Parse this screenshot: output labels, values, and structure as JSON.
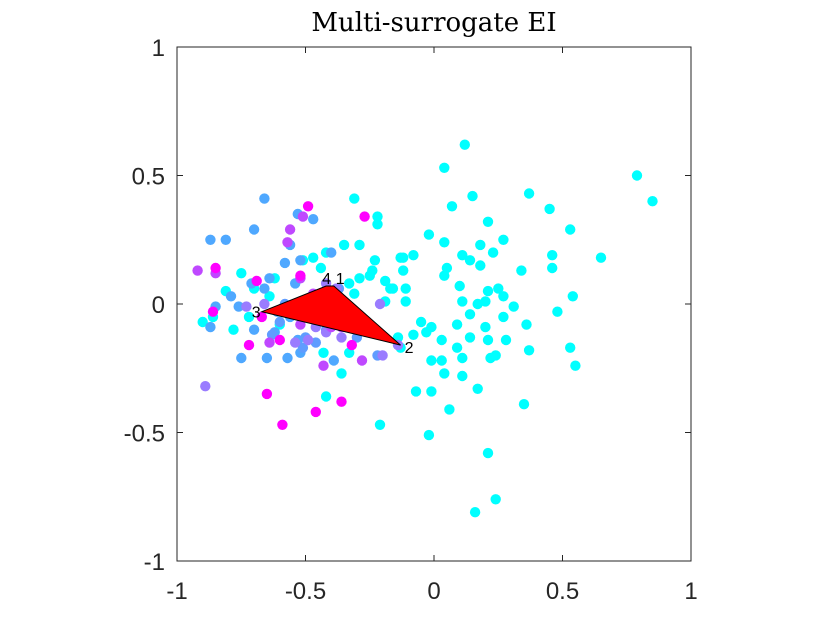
{
  "chart_data": {
    "type": "scatter",
    "title": "Multi-surrogate EI",
    "xlabel": "",
    "ylabel": "",
    "xlim": [
      -1,
      1
    ],
    "ylim": [
      -1,
      1
    ],
    "x_ticks": [
      -1,
      -0.5,
      0,
      0.5,
      1
    ],
    "y_ticks": [
      -1,
      -0.5,
      0,
      0.5,
      1
    ],
    "x_tick_labels": [
      "-1",
      "-0.5",
      "0",
      "0.5",
      "1"
    ],
    "y_tick_labels": [
      "-1",
      "-0.5",
      "0",
      "0.5",
      "1"
    ],
    "grid": false,
    "legend": "none",
    "box": true,
    "colors": {
      "cyan": "#00ffff",
      "sky": "#4fa8ff",
      "blue": "#5f9cff",
      "lavender": "#9a7cff",
      "violet": "#bf48ff",
      "magenta": "#ff00ff",
      "polygon_fill": "#ff0000",
      "polygon_edge": "#000000"
    },
    "points": [
      {
        "x": 0.12,
        "y": 0.62,
        "c": "cyan"
      },
      {
        "x": 0.79,
        "y": 0.5,
        "c": "cyan"
      },
      {
        "x": 0.85,
        "y": 0.4,
        "c": "cyan"
      },
      {
        "x": 0.04,
        "y": 0.53,
        "c": "cyan"
      },
      {
        "x": 0.37,
        "y": 0.43,
        "c": "cyan"
      },
      {
        "x": 0.15,
        "y": 0.42,
        "c": "cyan"
      },
      {
        "x": 0.45,
        "y": 0.37,
        "c": "cyan"
      },
      {
        "x": 0.07,
        "y": 0.38,
        "c": "cyan"
      },
      {
        "x": 0.21,
        "y": 0.32,
        "c": "cyan"
      },
      {
        "x": 0.53,
        "y": 0.29,
        "c": "cyan"
      },
      {
        "x": -0.02,
        "y": 0.27,
        "c": "cyan"
      },
      {
        "x": 0.04,
        "y": 0.24,
        "c": "cyan"
      },
      {
        "x": 0.18,
        "y": 0.23,
        "c": "cyan"
      },
      {
        "x": 0.27,
        "y": 0.25,
        "c": "cyan"
      },
      {
        "x": -0.08,
        "y": 0.19,
        "c": "cyan"
      },
      {
        "x": -0.13,
        "y": 0.18,
        "c": "cyan"
      },
      {
        "x": -0.12,
        "y": 0.18,
        "c": "cyan"
      },
      {
        "x": 0.11,
        "y": 0.19,
        "c": "cyan"
      },
      {
        "x": 0.23,
        "y": 0.2,
        "c": "cyan"
      },
      {
        "x": 0.65,
        "y": 0.18,
        "c": "cyan"
      },
      {
        "x": 0.05,
        "y": 0.14,
        "c": "cyan"
      },
      {
        "x": 0.14,
        "y": 0.17,
        "c": "cyan"
      },
      {
        "x": 0.46,
        "y": 0.19,
        "c": "cyan"
      },
      {
        "x": 0.18,
        "y": 0.15,
        "c": "cyan"
      },
      {
        "x": 0.34,
        "y": 0.13,
        "c": "cyan"
      },
      {
        "x": 0.04,
        "y": 0.11,
        "c": "cyan"
      },
      {
        "x": -0.12,
        "y": 0.13,
        "c": "cyan"
      },
      {
        "x": 0.46,
        "y": 0.14,
        "c": "cyan"
      },
      {
        "x": 0.1,
        "y": 0.07,
        "c": "cyan"
      },
      {
        "x": -0.17,
        "y": 0.06,
        "c": "cyan"
      },
      {
        "x": -0.11,
        "y": 0.06,
        "c": "cyan"
      },
      {
        "x": 0.21,
        "y": 0.05,
        "c": "cyan"
      },
      {
        "x": 0.25,
        "y": 0.06,
        "c": "cyan"
      },
      {
        "x": 0.2,
        "y": 0.01,
        "c": "cyan"
      },
      {
        "x": 0.27,
        "y": 0.03,
        "c": "cyan"
      },
      {
        "x": 0.54,
        "y": 0.03,
        "c": "cyan"
      },
      {
        "x": -0.11,
        "y": 0.01,
        "c": "cyan"
      },
      {
        "x": 0.11,
        "y": 0.01,
        "c": "cyan"
      },
      {
        "x": 0.17,
        "y": 0.0,
        "c": "cyan"
      },
      {
        "x": 0.31,
        "y": -0.01,
        "c": "cyan"
      },
      {
        "x": 0.48,
        "y": -0.03,
        "c": "cyan"
      },
      {
        "x": 0.14,
        "y": -0.04,
        "c": "cyan"
      },
      {
        "x": 0.27,
        "y": -0.05,
        "c": "cyan"
      },
      {
        "x": -0.05,
        "y": -0.07,
        "c": "cyan"
      },
      {
        "x": 0.09,
        "y": -0.08,
        "c": "cyan"
      },
      {
        "x": -0.01,
        "y": -0.09,
        "c": "cyan"
      },
      {
        "x": 0.2,
        "y": -0.09,
        "c": "cyan"
      },
      {
        "x": 0.36,
        "y": -0.08,
        "c": "cyan"
      },
      {
        "x": -0.03,
        "y": -0.11,
        "c": "cyan"
      },
      {
        "x": -0.08,
        "y": -0.12,
        "c": "cyan"
      },
      {
        "x": 0.03,
        "y": -0.14,
        "c": "cyan"
      },
      {
        "x": 0.14,
        "y": -0.13,
        "c": "cyan"
      },
      {
        "x": 0.21,
        "y": -0.14,
        "c": "cyan"
      },
      {
        "x": 0.28,
        "y": -0.14,
        "c": "cyan"
      },
      {
        "x": 0.09,
        "y": -0.17,
        "c": "cyan"
      },
      {
        "x": 0.37,
        "y": -0.18,
        "c": "cyan"
      },
      {
        "x": 0.53,
        "y": -0.17,
        "c": "cyan"
      },
      {
        "x": 0.24,
        "y": -0.2,
        "c": "cyan"
      },
      {
        "x": 0.11,
        "y": -0.21,
        "c": "cyan"
      },
      {
        "x": -0.01,
        "y": -0.22,
        "c": "cyan"
      },
      {
        "x": 0.03,
        "y": -0.22,
        "c": "cyan"
      },
      {
        "x": 0.22,
        "y": -0.21,
        "c": "cyan"
      },
      {
        "x": 0.55,
        "y": -0.24,
        "c": "cyan"
      },
      {
        "x": 0.04,
        "y": -0.27,
        "c": "cyan"
      },
      {
        "x": 0.11,
        "y": -0.28,
        "c": "cyan"
      },
      {
        "x": -0.07,
        "y": -0.34,
        "c": "cyan"
      },
      {
        "x": -0.01,
        "y": -0.34,
        "c": "cyan"
      },
      {
        "x": 0.17,
        "y": -0.33,
        "c": "cyan"
      },
      {
        "x": 0.35,
        "y": -0.39,
        "c": "cyan"
      },
      {
        "x": 0.06,
        "y": -0.41,
        "c": "cyan"
      },
      {
        "x": -0.21,
        "y": -0.47,
        "c": "cyan"
      },
      {
        "x": -0.02,
        "y": -0.51,
        "c": "cyan"
      },
      {
        "x": 0.21,
        "y": -0.58,
        "c": "cyan"
      },
      {
        "x": 0.24,
        "y": -0.76,
        "c": "cyan"
      },
      {
        "x": 0.16,
        "y": -0.81,
        "c": "cyan"
      },
      {
        "x": -0.31,
        "y": 0.41,
        "c": "cyan"
      },
      {
        "x": -0.22,
        "y": 0.34,
        "c": "cyan"
      },
      {
        "x": -0.22,
        "y": 0.31,
        "c": "cyan"
      },
      {
        "x": -0.35,
        "y": 0.23,
        "c": "cyan"
      },
      {
        "x": -0.29,
        "y": 0.23,
        "c": "cyan"
      },
      {
        "x": -0.42,
        "y": 0.2,
        "c": "cyan"
      },
      {
        "x": -0.47,
        "y": 0.18,
        "c": "cyan"
      },
      {
        "x": -0.51,
        "y": 0.17,
        "c": "cyan"
      },
      {
        "x": -0.23,
        "y": 0.17,
        "c": "cyan"
      },
      {
        "x": -0.44,
        "y": 0.14,
        "c": "cyan"
      },
      {
        "x": -0.24,
        "y": 0.13,
        "c": "cyan"
      },
      {
        "x": -0.29,
        "y": 0.1,
        "c": "cyan"
      },
      {
        "x": -0.25,
        "y": 0.11,
        "c": "cyan"
      },
      {
        "x": -0.75,
        "y": 0.12,
        "c": "cyan"
      },
      {
        "x": -0.62,
        "y": 0.1,
        "c": "cyan"
      },
      {
        "x": -0.33,
        "y": 0.08,
        "c": "cyan"
      },
      {
        "x": -0.19,
        "y": 0.09,
        "c": "cyan"
      },
      {
        "x": -0.16,
        "y": 0.06,
        "c": "cyan"
      },
      {
        "x": -0.7,
        "y": 0.06,
        "c": "cyan"
      },
      {
        "x": -0.81,
        "y": 0.05,
        "c": "cyan"
      },
      {
        "x": -0.64,
        "y": 0.03,
        "c": "cyan"
      },
      {
        "x": -0.31,
        "y": 0.04,
        "c": "cyan"
      },
      {
        "x": -0.19,
        "y": 0.01,
        "c": "cyan"
      },
      {
        "x": -0.37,
        "y": -0.01,
        "c": "cyan"
      },
      {
        "x": -0.86,
        "y": -0.05,
        "c": "cyan"
      },
      {
        "x": -0.9,
        "y": -0.07,
        "c": "cyan"
      },
      {
        "x": -0.72,
        "y": -0.05,
        "c": "cyan"
      },
      {
        "x": -0.78,
        "y": -0.1,
        "c": "cyan"
      },
      {
        "x": -0.6,
        "y": -0.08,
        "c": "cyan"
      },
      {
        "x": -0.14,
        "y": -0.13,
        "c": "cyan"
      },
      {
        "x": -0.33,
        "y": -0.19,
        "c": "cyan"
      },
      {
        "x": -0.43,
        "y": -0.19,
        "c": "cyan"
      },
      {
        "x": -0.36,
        "y": -0.27,
        "c": "cyan"
      },
      {
        "x": -0.42,
        "y": -0.36,
        "c": "cyan"
      },
      {
        "x": -0.13,
        "y": -0.17,
        "c": "cyan"
      },
      {
        "x": -0.66,
        "y": 0.41,
        "c": "sky"
      },
      {
        "x": -0.53,
        "y": 0.35,
        "c": "sky"
      },
      {
        "x": -0.47,
        "y": 0.33,
        "c": "sky"
      },
      {
        "x": -0.7,
        "y": 0.29,
        "c": "sky"
      },
      {
        "x": -0.87,
        "y": 0.25,
        "c": "sky"
      },
      {
        "x": -0.81,
        "y": 0.25,
        "c": "sky"
      },
      {
        "x": -0.56,
        "y": 0.23,
        "c": "sky"
      },
      {
        "x": -0.4,
        "y": 0.2,
        "c": "sky"
      },
      {
        "x": -0.52,
        "y": 0.17,
        "c": "sky"
      },
      {
        "x": -0.58,
        "y": 0.16,
        "c": "sky"
      },
      {
        "x": -0.64,
        "y": 0.1,
        "c": "sky"
      },
      {
        "x": -0.71,
        "y": 0.08,
        "c": "sky"
      },
      {
        "x": -0.54,
        "y": 0.08,
        "c": "sky"
      },
      {
        "x": -0.79,
        "y": 0.03,
        "c": "sky"
      },
      {
        "x": -0.66,
        "y": 0.06,
        "c": "sky"
      },
      {
        "x": -0.85,
        "y": -0.01,
        "c": "sky"
      },
      {
        "x": -0.76,
        "y": -0.01,
        "c": "sky"
      },
      {
        "x": -0.61,
        "y": -0.03,
        "c": "sky"
      },
      {
        "x": -0.56,
        "y": -0.05,
        "c": "sky"
      },
      {
        "x": -0.87,
        "y": -0.09,
        "c": "sky"
      },
      {
        "x": -0.7,
        "y": -0.1,
        "c": "sky"
      },
      {
        "x": -0.62,
        "y": -0.11,
        "c": "sky"
      },
      {
        "x": -0.53,
        "y": -0.14,
        "c": "sky"
      },
      {
        "x": -0.75,
        "y": -0.21,
        "c": "sky"
      },
      {
        "x": -0.65,
        "y": -0.21,
        "c": "sky"
      },
      {
        "x": -0.57,
        "y": -0.21,
        "c": "sky"
      },
      {
        "x": -0.52,
        "y": -0.19,
        "c": "sky"
      },
      {
        "x": -0.39,
        "y": -0.22,
        "c": "sky"
      },
      {
        "x": -0.5,
        "y": -0.13,
        "c": "blue"
      },
      {
        "x": -0.46,
        "y": -0.15,
        "c": "blue"
      },
      {
        "x": -0.42,
        "y": -0.1,
        "c": "blue"
      },
      {
        "x": -0.3,
        "y": -0.13,
        "c": "blue"
      },
      {
        "x": -0.22,
        "y": -0.2,
        "c": "blue"
      },
      {
        "x": -0.51,
        "y": -0.17,
        "c": "blue"
      },
      {
        "x": -0.63,
        "y": -0.12,
        "c": "blue"
      },
      {
        "x": -0.58,
        "y": 0.0,
        "c": "blue"
      },
      {
        "x": -0.37,
        "y": 0.06,
        "c": "blue"
      },
      {
        "x": -0.49,
        "y": -0.02,
        "c": "blue"
      },
      {
        "x": -0.6,
        "y": -0.07,
        "c": "blue"
      },
      {
        "x": -0.52,
        "y": 0.01,
        "c": "lavender"
      },
      {
        "x": -0.47,
        "y": 0.01,
        "c": "lavender"
      },
      {
        "x": -0.42,
        "y": 0.08,
        "c": "lavender"
      },
      {
        "x": -0.38,
        "y": 0.06,
        "c": "lavender"
      },
      {
        "x": -0.66,
        "y": 0.0,
        "c": "lavender"
      },
      {
        "x": -0.73,
        "y": -0.01,
        "c": "lavender"
      },
      {
        "x": -0.57,
        "y": -0.02,
        "c": "lavender"
      },
      {
        "x": -0.45,
        "y": -0.04,
        "c": "lavender"
      },
      {
        "x": -0.33,
        "y": -0.02,
        "c": "lavender"
      },
      {
        "x": -0.46,
        "y": -0.09,
        "c": "lavender"
      },
      {
        "x": -0.42,
        "y": -0.11,
        "c": "lavender"
      },
      {
        "x": -0.33,
        "y": -0.08,
        "c": "lavender"
      },
      {
        "x": -0.26,
        "y": -0.09,
        "c": "lavender"
      },
      {
        "x": -0.2,
        "y": -0.2,
        "c": "lavender"
      },
      {
        "x": -0.36,
        "y": -0.13,
        "c": "lavender"
      },
      {
        "x": -0.49,
        "y": -0.14,
        "c": "lavender"
      },
      {
        "x": -0.54,
        "y": -0.15,
        "c": "lavender"
      },
      {
        "x": -0.89,
        "y": -0.32,
        "c": "lavender"
      },
      {
        "x": -0.14,
        "y": -0.16,
        "c": "lavender"
      },
      {
        "x": -0.21,
        "y": 0.0,
        "c": "lavender"
      },
      {
        "x": -0.92,
        "y": 0.13,
        "c": "violet"
      },
      {
        "x": -0.85,
        "y": 0.12,
        "c": "violet"
      },
      {
        "x": -0.56,
        "y": 0.29,
        "c": "violet"
      },
      {
        "x": -0.51,
        "y": 0.34,
        "c": "violet"
      },
      {
        "x": -0.57,
        "y": 0.24,
        "c": "violet"
      },
      {
        "x": -0.52,
        "y": 0.1,
        "c": "violet"
      },
      {
        "x": -0.47,
        "y": 0.04,
        "c": "violet"
      },
      {
        "x": -0.55,
        "y": -0.04,
        "c": "violet"
      },
      {
        "x": -0.52,
        "y": -0.08,
        "c": "violet"
      },
      {
        "x": -0.4,
        "y": -0.09,
        "c": "violet"
      },
      {
        "x": -0.36,
        "y": -0.09,
        "c": "violet"
      },
      {
        "x": -0.43,
        "y": -0.24,
        "c": "violet"
      },
      {
        "x": -0.64,
        "y": -0.15,
        "c": "violet"
      },
      {
        "x": -0.28,
        "y": -0.22,
        "c": "violet"
      },
      {
        "x": -0.49,
        "y": 0.38,
        "c": "magenta"
      },
      {
        "x": -0.27,
        "y": 0.34,
        "c": "magenta"
      },
      {
        "x": -0.85,
        "y": 0.14,
        "c": "magenta"
      },
      {
        "x": -0.69,
        "y": 0.09,
        "c": "magenta"
      },
      {
        "x": -0.52,
        "y": 0.11,
        "c": "magenta"
      },
      {
        "x": -0.86,
        "y": -0.03,
        "c": "magenta"
      },
      {
        "x": -0.67,
        "y": -0.05,
        "c": "magenta"
      },
      {
        "x": -0.72,
        "y": -0.16,
        "c": "magenta"
      },
      {
        "x": -0.6,
        "y": -0.14,
        "c": "magenta"
      },
      {
        "x": -0.35,
        "y": -0.08,
        "c": "magenta"
      },
      {
        "x": -0.32,
        "y": -0.16,
        "c": "magenta"
      },
      {
        "x": -0.65,
        "y": -0.35,
        "c": "magenta"
      },
      {
        "x": -0.36,
        "y": -0.38,
        "c": "magenta"
      },
      {
        "x": -0.46,
        "y": -0.42,
        "c": "magenta"
      },
      {
        "x": -0.59,
        "y": -0.47,
        "c": "magenta"
      }
    ],
    "polygon": {
      "vertices": [
        {
          "x": -0.67,
          "y": -0.03,
          "label": "3"
        },
        {
          "x": -0.42,
          "y": 0.07,
          "label": "4"
        },
        {
          "x": -0.39,
          "y": 0.07,
          "label": "1"
        },
        {
          "x": -0.13,
          "y": -0.16,
          "label": "2"
        }
      ]
    }
  }
}
